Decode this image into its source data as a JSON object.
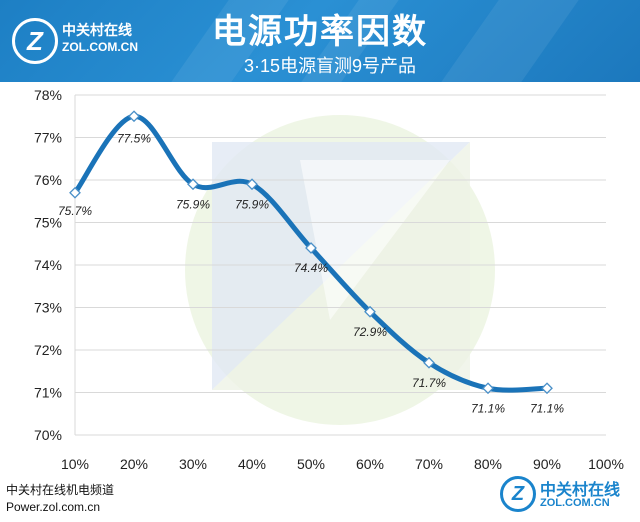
{
  "banner": {
    "title": "电源功率因数",
    "subtitle": "3·15电源盲测9号产品",
    "logo_cn": "中关村在线",
    "logo_en": "ZOL.COM.CN",
    "logo_mark": "Z"
  },
  "footer": {
    "line1": "中关村在线机电频道",
    "line2": "Power.zol.com.cn",
    "logo_cn": "中关村在线",
    "logo_en": "ZOL.COM.CN",
    "logo_mark": "Z"
  },
  "colors": {
    "banner": "#1d7fc4",
    "series_line": "#1a73b8",
    "grid": "#d9d9d9",
    "marker_stroke": "#4a90c8"
  },
  "chart_data": {
    "type": "line",
    "smooth": true,
    "x": [
      "10%",
      "20%",
      "30%",
      "40%",
      "50%",
      "60%",
      "70%",
      "80%",
      "90%"
    ],
    "x_tick_labels": [
      "10%",
      "20%",
      "30%",
      "40%",
      "50%",
      "60%",
      "70%",
      "80%",
      "90%",
      "100%"
    ],
    "values": [
      75.7,
      77.5,
      75.9,
      75.9,
      74.4,
      72.9,
      71.7,
      71.1,
      71.1
    ],
    "data_labels": [
      "75.7%",
      "77.5%",
      "75.9%",
      "75.9%",
      "74.4%",
      "72.9%",
      "71.7%",
      "71.1%",
      "71.1%"
    ],
    "y_tick_labels": [
      "70%",
      "71%",
      "72%",
      "73%",
      "74%",
      "75%",
      "76%",
      "77%",
      "78%"
    ],
    "ylim": [
      70,
      78
    ],
    "grid": "horizontal",
    "legend": "none"
  }
}
